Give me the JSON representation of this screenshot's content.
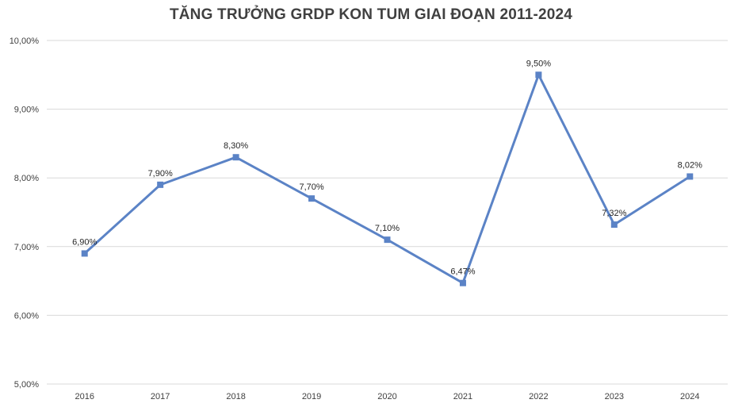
{
  "chart_data": {
    "type": "line",
    "title": "TĂNG TRƯỞNG GRDP KON TUM GIAI ĐOẠN 2011-2024",
    "xlabel": "",
    "ylabel": "",
    "categories": [
      "2016",
      "2017",
      "2018",
      "2019",
      "2020",
      "2021",
      "2022",
      "2023",
      "2024"
    ],
    "series": [
      {
        "values": [
          6.9,
          7.9,
          8.3,
          7.7,
          7.1,
          6.47,
          9.5,
          7.32,
          8.02
        ],
        "data_labels": [
          "6,90%",
          "7,90%",
          "8,30%",
          "7,70%",
          "7,10%",
          "6,47%",
          "9,50%",
          "7,32%",
          "8,02%"
        ],
        "color": "#5B83C6",
        "marker": "square"
      }
    ],
    "ylim": [
      5,
      10
    ],
    "yticks": [
      5,
      6,
      7,
      8,
      9,
      10
    ],
    "ytick_labels": [
      "5,00%",
      "6,00%",
      "7,00%",
      "8,00%",
      "9,00%",
      "10,00%"
    ],
    "grid": true,
    "gridline_color": "#D9D9D9",
    "legend": "none"
  }
}
